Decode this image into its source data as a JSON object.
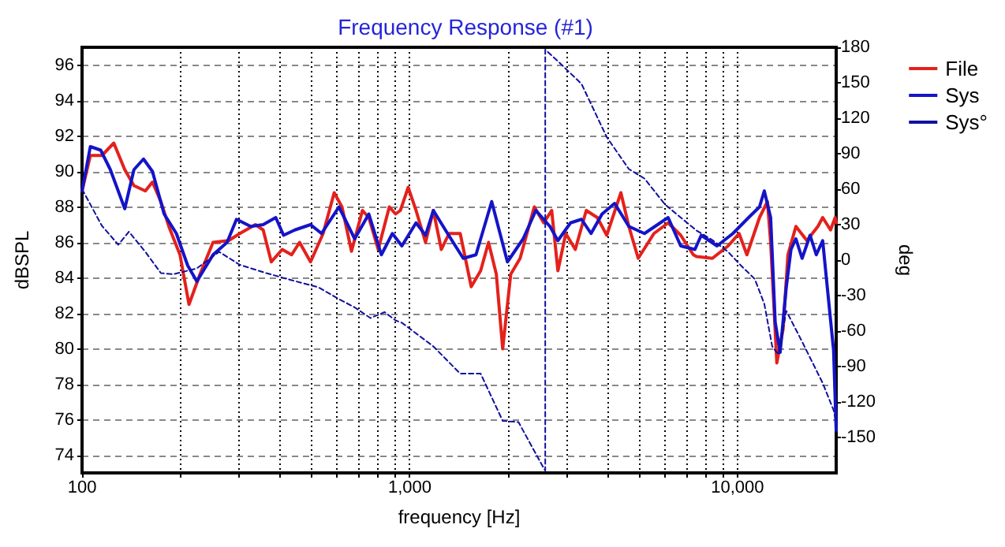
{
  "chart_data": {
    "type": "line",
    "title": "Frequency Response (#1)",
    "xlabel": "frequency [Hz]",
    "ylabel": "dBSPL",
    "y2label": "deg",
    "log": "x",
    "grid": true,
    "legend": "top right",
    "marker": "none",
    "xlim": [
      100,
      20000
    ],
    "xticks": [
      100,
      {
        "value": 200,
        "label": null
      },
      {
        "value": 300,
        "label": null
      },
      {
        "value": 400,
        "label": null
      },
      {
        "value": 500,
        "label": null
      },
      {
        "value": 600,
        "label": null
      },
      {
        "value": 700,
        "label": null
      },
      {
        "value": 800,
        "label": null
      },
      {
        "value": 900,
        "label": null
      },
      {
        "value": 1000,
        "label": "1,000"
      },
      {
        "value": 2000,
        "label": null
      },
      {
        "value": 3000,
        "label": null
      },
      {
        "value": 4000,
        "label": null
      },
      {
        "value": 5000,
        "label": null
      },
      {
        "value": 6000,
        "label": null
      },
      {
        "value": 7000,
        "label": null
      },
      {
        "value": 8000,
        "label": null
      },
      {
        "value": 9000,
        "label": null
      },
      {
        "value": 10000,
        "label": "10,000"
      }
    ],
    "ylim": [
      73,
      97
    ],
    "yticks": [
      74,
      76,
      78,
      80,
      82,
      84,
      86,
      88,
      90,
      92,
      94,
      96
    ],
    "y2lim": [
      -180,
      180
    ],
    "y2ticks": [
      -150,
      -120,
      -90,
      -60,
      -30,
      0,
      30,
      60,
      90,
      120,
      150,
      180
    ],
    "series": [
      {
        "name": "File",
        "color": "#e4211c",
        "line_style": "solid",
        "x": [
          100,
          106,
          115,
          125,
          135,
          144,
          156,
          164,
          174,
          184,
          199,
          212,
          229,
          251,
          280,
          303,
          338,
          357,
          378,
          408,
          436,
          461,
          498,
          544,
          588,
          621,
          664,
          717,
          750,
          801,
          866,
          905,
          936,
          989,
          1045,
          1117,
          1180,
          1248,
          1318,
          1425,
          1540,
          1645,
          1739,
          1837,
          1921,
          2032,
          2171,
          2398,
          2563,
          2710,
          2831,
          2992,
          3199,
          3455,
          3733,
          3990,
          4407,
          4660,
          4977,
          5559,
          6141,
          6710,
          7332,
          7500,
          8380,
          9360,
          10110,
          10680,
          11670,
          12340,
          12620,
          13180,
          13770,
          14250,
          15070,
          16280,
          17590,
          18190,
          19220,
          19860,
          20000
        ],
        "values": [
          88.9,
          90.9,
          90.9,
          91.6,
          90.1,
          89.2,
          88.9,
          89.4,
          88.3,
          86.9,
          85.3,
          82.5,
          84.2,
          86.0,
          86.1,
          86.5,
          87.0,
          86.7,
          84.9,
          85.6,
          85.3,
          86.0,
          84.9,
          86.5,
          88.8,
          88.0,
          85.5,
          87.8,
          87.4,
          85.6,
          88.0,
          87.6,
          87.8,
          89.1,
          87.8,
          86.0,
          87.8,
          85.6,
          86.5,
          86.5,
          83.5,
          84.4,
          86.0,
          84.2,
          80.0,
          84.2,
          85.1,
          88.0,
          87.1,
          87.8,
          84.4,
          86.5,
          85.6,
          87.8,
          87.4,
          86.4,
          88.8,
          86.9,
          85.1,
          86.5,
          87.1,
          86.4,
          85.3,
          85.2,
          85.1,
          85.8,
          86.5,
          85.3,
          87.4,
          88.3,
          86.0,
          79.2,
          81.1,
          85.3,
          86.9,
          86.1,
          86.9,
          87.4,
          86.7,
          87.4,
          87.1
        ]
      },
      {
        "name": "Sys",
        "color": "#1414c8",
        "line_style": "solid",
        "x": [
          100,
          106,
          114,
          122,
          135,
          144,
          154,
          164,
          178,
          194,
          210,
          224,
          251,
          277,
          296,
          327,
          357,
          390,
          412,
          446,
          498,
          538,
          608,
          679,
          750,
          819,
          885,
          946,
          1045,
          1117,
          1180,
          1304,
          1456,
          1592,
          1778,
          1986,
          2218,
          2425,
          2677,
          2831,
          3093,
          3342,
          3573,
          3861,
          4217,
          4660,
          5200,
          6141,
          6710,
          7413,
          7750,
          8660,
          9680,
          10810,
          11670,
          12070,
          12620,
          13030,
          13490,
          14090,
          14560,
          15070,
          15740,
          16650,
          17390,
          18190,
          18780,
          19640,
          20000
        ],
        "values": [
          88.9,
          91.4,
          91.2,
          90.1,
          87.9,
          90.1,
          90.7,
          90.0,
          87.6,
          86.5,
          84.7,
          83.8,
          85.3,
          86.0,
          87.3,
          86.9,
          87.0,
          87.4,
          86.4,
          86.7,
          87.0,
          86.5,
          88.0,
          86.2,
          87.6,
          85.3,
          86.5,
          85.8,
          87.1,
          86.4,
          87.8,
          86.5,
          85.1,
          85.3,
          88.3,
          84.9,
          86.2,
          87.8,
          86.9,
          86.1,
          87.1,
          87.3,
          86.5,
          87.6,
          88.2,
          86.9,
          86.5,
          87.4,
          85.8,
          85.6,
          86.4,
          85.8,
          86.5,
          87.4,
          88.0,
          88.9,
          87.4,
          81.5,
          79.8,
          83.5,
          85.6,
          86.2,
          85.1,
          86.4,
          85.3,
          86.1,
          83.5,
          79.9,
          75.4
        ]
      },
      {
        "name": "Sys°",
        "color": "#1010a0",
        "line_style": "dashed",
        "axis": "y2",
        "x": [
          100,
          115,
          129,
          139,
          156,
          174,
          190,
          224,
          262,
          303,
          365,
          436,
          526,
          608,
          679,
          758,
          838,
          905,
          946,
          1180,
          1425,
          1645,
          1921,
          2146,
          2563,
          2590,
          2590,
          2862,
          3342,
          3990,
          4660,
          5200,
          6010,
          6710,
          7500,
          8380,
          9360,
          10110,
          11290,
          12070,
          12760,
          13340,
          14090,
          15740,
          18190,
          19640,
          20000
        ],
        "values": [
          60,
          29,
          13,
          24,
          7,
          -11,
          -12,
          -7,
          7,
          -4,
          -11,
          -17,
          -23,
          -33,
          -40,
          -49,
          -44,
          -51,
          -53,
          -73,
          -96,
          -96,
          -136,
          -137,
          -176,
          -178,
          178,
          167,
          149,
          104,
          77,
          69,
          47,
          36,
          25,
          17,
          7,
          -3,
          -16,
          -37,
          -73,
          -80,
          -43,
          -69,
          -104,
          -127,
          -137
        ]
      }
    ]
  }
}
